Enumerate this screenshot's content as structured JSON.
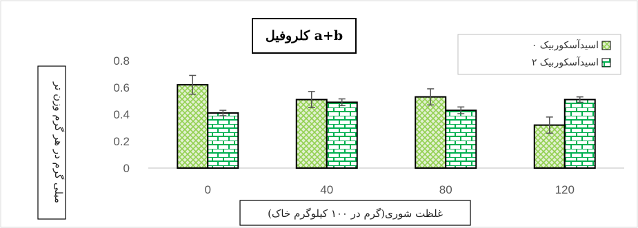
{
  "chart_data": {
    "type": "bar",
    "title": "کلروفیل a+b",
    "xlabel": "غلظت شوری(گرم در ۱۰۰ کیلوگرم خاک)",
    "ylabel": "میلی گرم در هر گرم وزن تر",
    "categories": [
      "0",
      "40",
      "80",
      "120"
    ],
    "ylim": [
      0,
      0.8
    ],
    "yticks": [
      "0",
      "0.2",
      "0.4",
      "0.6",
      "0.8"
    ],
    "grid": false,
    "legend_position": "top-right",
    "series": [
      {
        "name": "۰ اسیدآسکوربیک",
        "values": [
          0.62,
          0.51,
          0.53,
          0.32
        ],
        "errors": [
          0.07,
          0.06,
          0.06,
          0.06
        ],
        "color": "#92d050",
        "pattern": "crosshatch"
      },
      {
        "name": "۲ اسیدآسکوربیک",
        "values": [
          0.41,
          0.49,
          0.43,
          0.51
        ],
        "errors": [
          0.02,
          0.025,
          0.025,
          0.02
        ],
        "color": "#00b050",
        "pattern": "brick"
      }
    ]
  }
}
